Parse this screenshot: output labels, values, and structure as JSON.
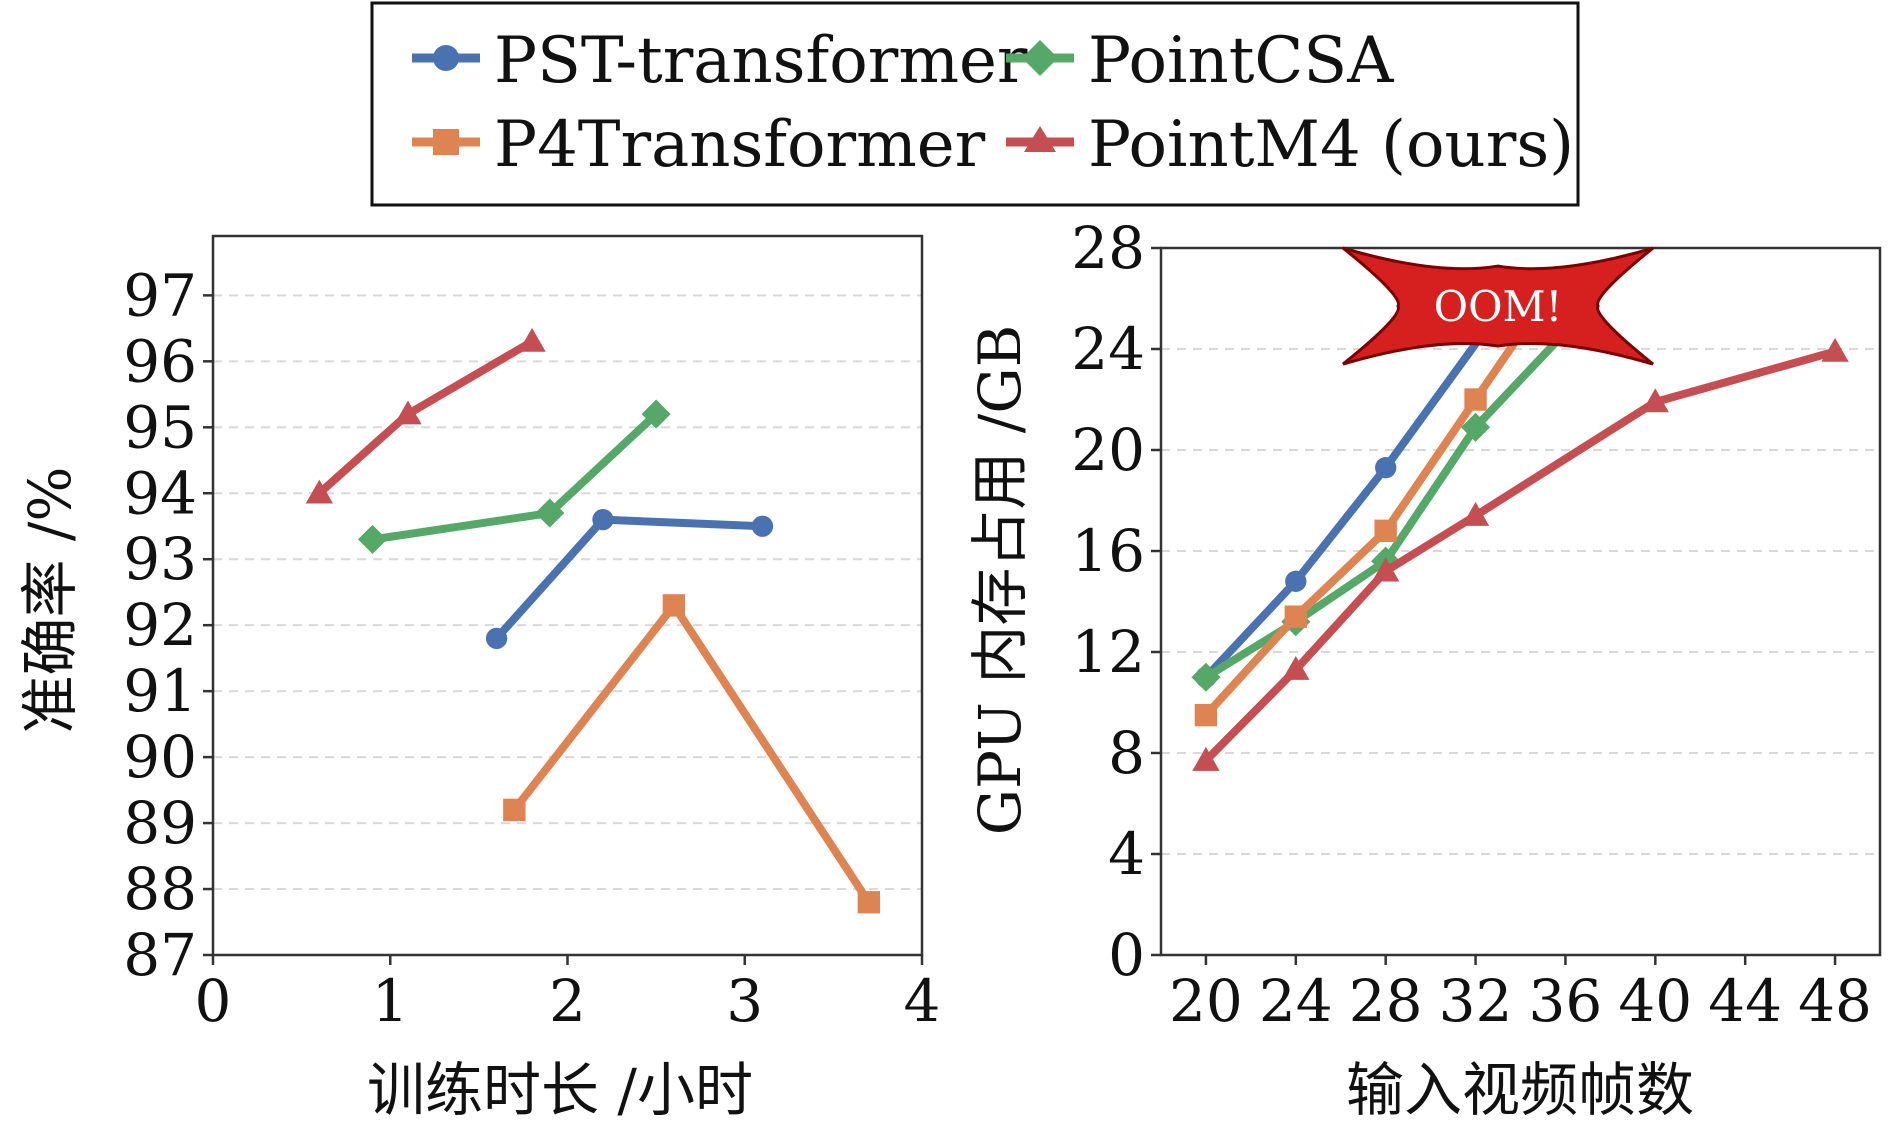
{
  "legend": {
    "items": [
      {
        "label": "PST-transformer",
        "color": "#4a72b0",
        "marker": "circle"
      },
      {
        "label": "PointCSA",
        "color": "#55a868",
        "marker": "diamond"
      },
      {
        "label": "P4Transformer",
        "color": "#dd8452",
        "marker": "square"
      },
      {
        "label": "PointM4 (ours)",
        "color": "#c44e52",
        "marker": "triangle"
      }
    ]
  },
  "chart_data": [
    {
      "type": "line",
      "xlabel": "训练时长 /小时",
      "ylabel": "准确率 /%",
      "xlim": [
        0,
        4
      ],
      "ylim": [
        87,
        97.9
      ],
      "xticks": [
        "0",
        "1",
        "2",
        "3",
        "4"
      ],
      "yticks": [
        "87",
        "88",
        "89",
        "90",
        "91",
        "92",
        "93",
        "94",
        "95",
        "96",
        "97"
      ],
      "grid": true,
      "series": [
        {
          "name": "PST-transformer",
          "color": "#4a72b0",
          "marker": "circle",
          "x": [
            1.6,
            2.2,
            3.1
          ],
          "y": [
            91.8,
            93.6,
            93.5
          ]
        },
        {
          "name": "PointCSA",
          "color": "#55a868",
          "marker": "diamond",
          "x": [
            0.9,
            1.9,
            2.5
          ],
          "y": [
            93.3,
            93.7,
            95.2
          ]
        },
        {
          "name": "P4Transformer",
          "color": "#dd8452",
          "marker": "square",
          "x": [
            1.7,
            2.6,
            3.7
          ],
          "y": [
            89.2,
            92.3,
            87.8
          ]
        },
        {
          "name": "PointM4 (ours)",
          "color": "#c44e52",
          "marker": "triangle",
          "x": [
            0.6,
            1.1,
            1.8
          ],
          "y": [
            94.0,
            95.2,
            96.3
          ]
        }
      ]
    },
    {
      "type": "line",
      "xlabel": "输入视频帧数",
      "ylabel": "GPU 内存占用 /GB",
      "xlim": [
        18,
        50
      ],
      "ylim": [
        0,
        28
      ],
      "xticks": [
        "20",
        "24",
        "28",
        "32",
        "36",
        "40",
        "44",
        "48"
      ],
      "yticks": [
        "0",
        "4",
        "8",
        "12",
        "16",
        "20",
        "24",
        "28"
      ],
      "grid": true,
      "annotation": {
        "text": "OOM!",
        "x": 33,
        "y": 25.7,
        "color": "#d61f1f"
      },
      "series": [
        {
          "name": "PST-transformer",
          "color": "#4a72b0",
          "marker": "circle",
          "x": [
            20,
            24,
            28,
            32
          ],
          "y": [
            11.0,
            14.8,
            19.3,
            24.2
          ],
          "marked_points": 3
        },
        {
          "name": "PointCSA",
          "color": "#55a868",
          "marker": "diamond",
          "x": [
            20,
            24,
            28,
            32,
            35.5
          ],
          "y": [
            11.0,
            13.2,
            15.6,
            20.9,
            24.2
          ],
          "marked_points": 4
        },
        {
          "name": "P4Transformer",
          "color": "#dd8452",
          "marker": "square",
          "x": [
            20,
            24,
            28,
            32,
            33.7
          ],
          "y": [
            9.5,
            13.4,
            16.8,
            22.0,
            24.2
          ],
          "marked_points": 4
        },
        {
          "name": "PointM4 (ours)",
          "color": "#c44e52",
          "marker": "triangle",
          "x": [
            20,
            24,
            28,
            32,
            40,
            48
          ],
          "y": [
            7.7,
            11.3,
            15.2,
            17.4,
            21.9,
            23.9
          ],
          "marked_points": 6
        }
      ]
    }
  ]
}
